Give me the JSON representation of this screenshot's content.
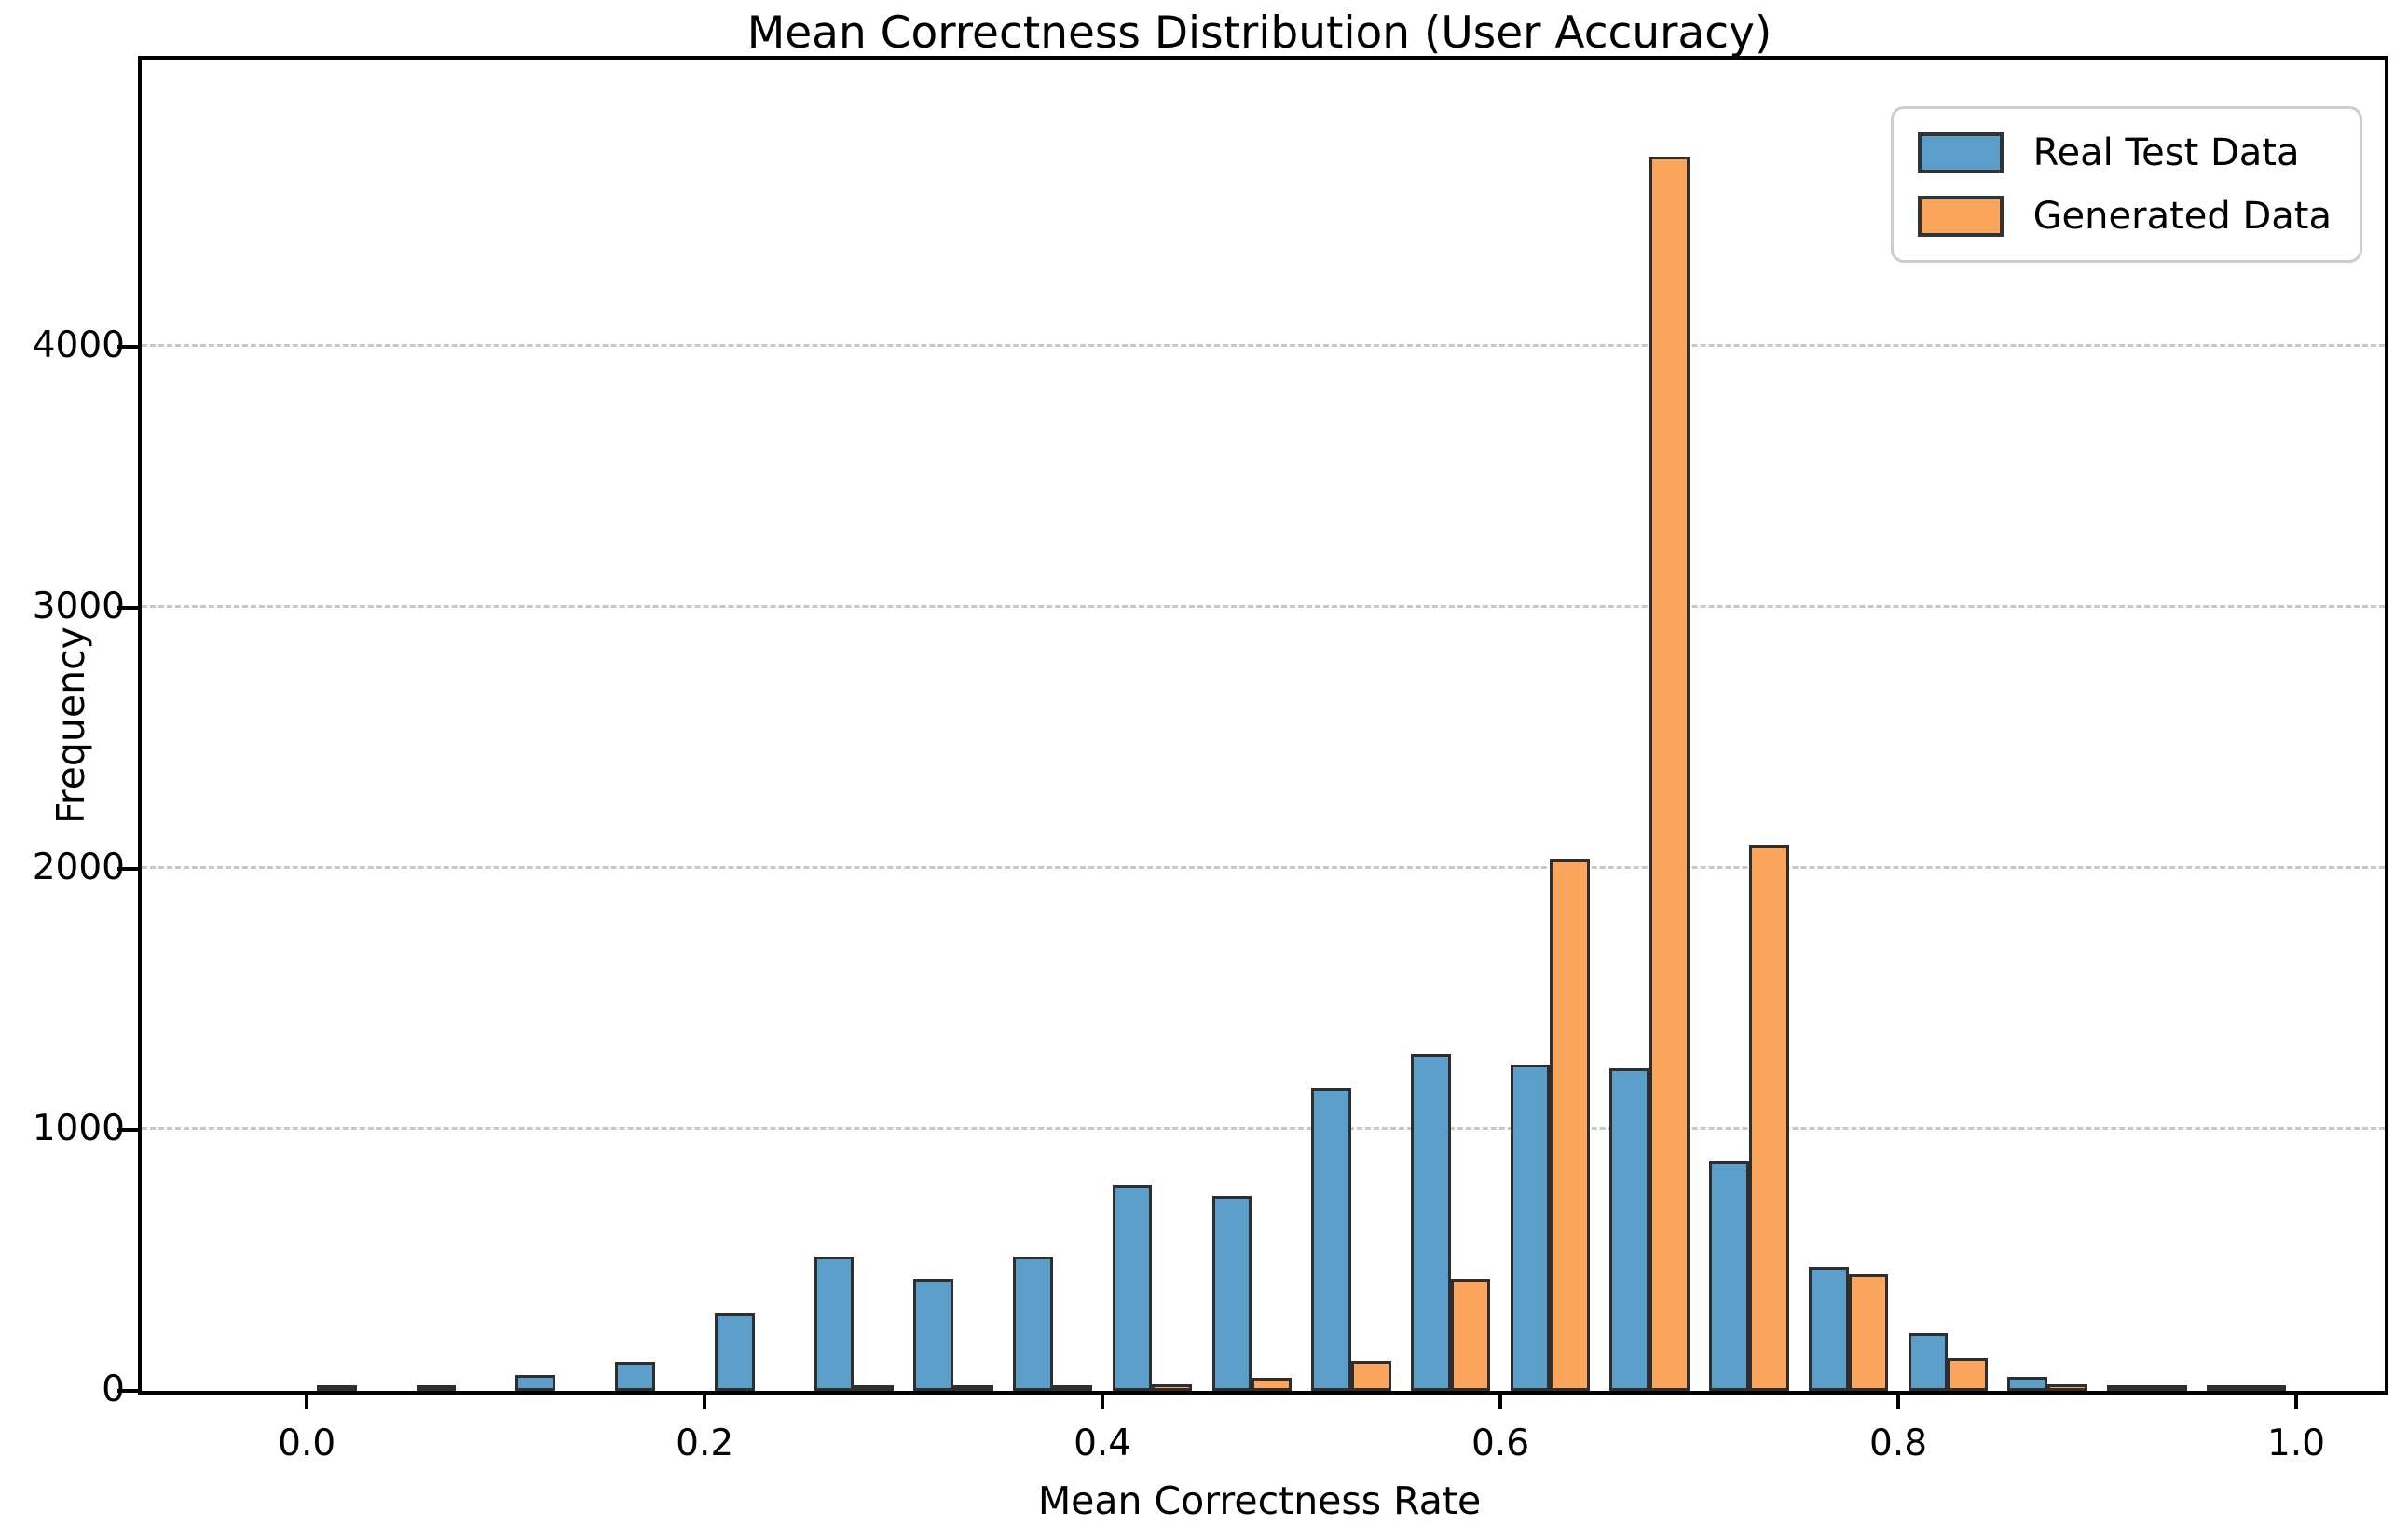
{
  "title": "Mean Correctness Distribution (User Accuracy)",
  "chart_data": {
    "type": "bar",
    "subtype": "grouped-histogram",
    "title": "Mean Correctness Distribution (User Accuracy)",
    "xlabel": "Mean Correctness Rate",
    "ylabel": "Frequency",
    "bin_width": 0.05,
    "bin_starts": [
      0.0,
      0.05,
      0.1,
      0.15,
      0.2,
      0.25,
      0.3,
      0.35,
      0.4,
      0.45,
      0.5,
      0.55,
      0.6,
      0.65,
      0.7,
      0.75,
      0.8,
      0.85,
      0.9,
      0.95
    ],
    "series": [
      {
        "name": "Real Test Data",
        "color": "#5b9ec9",
        "values": [
          10,
          18,
          60,
          110,
          295,
          515,
          430,
          515,
          790,
          745,
          1160,
          1290,
          1250,
          1235,
          880,
          475,
          220,
          55,
          18,
          12
        ]
      },
      {
        "name": "Generated Data",
        "color": "#fca55c",
        "values": [
          0,
          0,
          0,
          0,
          0,
          6,
          8,
          12,
          25,
          50,
          115,
          430,
          2035,
          4730,
          2090,
          445,
          125,
          25,
          12,
          8
        ]
      }
    ],
    "bar_edge_color": "#2e2e2e",
    "bar_slot_offsets": [
      0.005,
      0.025
    ],
    "bar_slot_width": 0.02,
    "xticks": [
      "0.0",
      "0.2",
      "0.4",
      "0.6",
      "0.8",
      "1.0"
    ],
    "xtick_values": [
      0.0,
      0.2,
      0.4,
      0.6,
      0.8,
      1.0
    ],
    "yticks": [
      "0",
      "1000",
      "2000",
      "3000",
      "4000"
    ],
    "ytick_values": [
      0,
      1000,
      2000,
      3000,
      4000
    ],
    "xlim": [
      -0.083,
      1.0445
    ],
    "ylim": [
      0,
      5100
    ],
    "grid": "horizontal-dashed",
    "grid_color": "#c8c8c8",
    "legend_position": "upper right",
    "legend": [
      "Real Test Data",
      "Generated Data"
    ]
  }
}
